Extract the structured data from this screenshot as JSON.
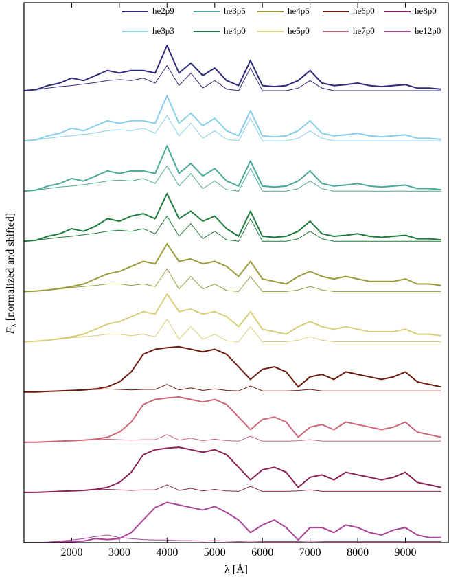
{
  "chart_data": {
    "type": "line",
    "xlabel": "λ [Å]",
    "ylabel_symbol": "F",
    "ylabel_subscript": "λ",
    "ylabel_text": "[normalized and shifted]",
    "xlim": [
      1000,
      9900
    ],
    "ylim": [
      0,
      10.75
    ],
    "xticks": [
      2000,
      3000,
      4000,
      5000,
      6000,
      7000,
      8000,
      9000
    ],
    "legend": "upper right",
    "x": [
      1000,
      1250,
      1500,
      1750,
      2000,
      2250,
      2500,
      2750,
      3000,
      3250,
      3500,
      3750,
      4000,
      4250,
      4500,
      4750,
      5000,
      5250,
      5500,
      5750,
      6000,
      6250,
      6500,
      6750,
      7000,
      7250,
      7500,
      7750,
      8000,
      8250,
      8500,
      8750,
      9000,
      9250,
      9500,
      9750
    ],
    "series": [
      {
        "name": "he2p9",
        "color": "#2d2a7a",
        "values": [
          9.0,
          9.02,
          9.1,
          9.15,
          9.25,
          9.2,
          9.3,
          9.4,
          9.35,
          9.4,
          9.4,
          9.35,
          9.9,
          9.35,
          9.55,
          9.3,
          9.45,
          9.2,
          9.1,
          9.6,
          9.1,
          9.08,
          9.1,
          9.2,
          9.4,
          9.15,
          9.1,
          9.12,
          9.15,
          9.1,
          9.08,
          9.1,
          9.12,
          9.05,
          9.05,
          9.03
        ],
        "secondary_values": [
          9.0,
          9.02,
          9.05,
          9.08,
          9.1,
          9.13,
          9.16,
          9.2,
          9.22,
          9.2,
          9.25,
          9.15,
          9.5,
          9.1,
          9.35,
          9.05,
          9.2,
          9.03,
          9.0,
          9.45,
          9.0,
          9.0,
          9.0,
          9.05,
          9.2,
          9.05,
          9.0,
          9.0,
          9.0,
          9.0,
          9.0,
          9.0,
          9.0,
          9.0,
          9.0,
          9.0
        ]
      },
      {
        "name": "he3p3",
        "color": "#87ceeb",
        "values": [
          8.0,
          8.02,
          8.1,
          8.15,
          8.25,
          8.2,
          8.3,
          8.4,
          8.35,
          8.4,
          8.4,
          8.35,
          8.9,
          8.35,
          8.55,
          8.3,
          8.45,
          8.2,
          8.1,
          8.6,
          8.1,
          8.08,
          8.1,
          8.2,
          8.4,
          8.15,
          8.1,
          8.12,
          8.15,
          8.1,
          8.08,
          8.1,
          8.12,
          8.05,
          8.05,
          8.03
        ],
        "secondary_values": [
          8.0,
          8.02,
          8.05,
          8.08,
          8.1,
          8.13,
          8.16,
          8.2,
          8.22,
          8.2,
          8.25,
          8.15,
          8.5,
          8.1,
          8.35,
          8.05,
          8.2,
          8.03,
          8.0,
          8.45,
          8.0,
          8.0,
          8.0,
          8.05,
          8.2,
          8.05,
          8.0,
          8.0,
          8.0,
          8.0,
          8.0,
          8.0,
          8.0,
          8.0,
          8.0,
          8.0
        ]
      },
      {
        "name": "he3p5",
        "color": "#4aa898",
        "values": [
          7.0,
          7.02,
          7.1,
          7.15,
          7.25,
          7.2,
          7.3,
          7.4,
          7.35,
          7.4,
          7.4,
          7.35,
          7.9,
          7.35,
          7.55,
          7.3,
          7.45,
          7.2,
          7.1,
          7.6,
          7.1,
          7.08,
          7.1,
          7.2,
          7.4,
          7.15,
          7.1,
          7.12,
          7.15,
          7.1,
          7.08,
          7.1,
          7.12,
          7.05,
          7.05,
          7.03
        ],
        "secondary_values": [
          7.0,
          7.02,
          7.05,
          7.08,
          7.1,
          7.13,
          7.16,
          7.2,
          7.22,
          7.2,
          7.25,
          7.15,
          7.5,
          7.1,
          7.35,
          7.05,
          7.2,
          7.03,
          7.0,
          7.45,
          7.0,
          7.0,
          7.0,
          7.05,
          7.2,
          7.05,
          7.0,
          7.0,
          7.0,
          7.0,
          7.0,
          7.0,
          7.0,
          7.0,
          7.0,
          7.0
        ]
      },
      {
        "name": "he4p0",
        "color": "#1e7a3c",
        "values": [
          6.0,
          6.02,
          6.1,
          6.15,
          6.25,
          6.2,
          6.3,
          6.45,
          6.4,
          6.5,
          6.55,
          6.45,
          6.95,
          6.45,
          6.6,
          6.4,
          6.5,
          6.25,
          6.1,
          6.6,
          6.1,
          6.08,
          6.1,
          6.2,
          6.4,
          6.15,
          6.1,
          6.12,
          6.15,
          6.1,
          6.08,
          6.1,
          6.12,
          6.05,
          6.05,
          6.03
        ],
        "secondary_values": [
          6.0,
          6.02,
          6.05,
          6.08,
          6.1,
          6.13,
          6.16,
          6.2,
          6.22,
          6.2,
          6.25,
          6.15,
          6.5,
          6.1,
          6.35,
          6.05,
          6.2,
          6.03,
          6.0,
          6.45,
          6.0,
          6.0,
          6.0,
          6.05,
          6.2,
          6.05,
          6.0,
          6.0,
          6.0,
          6.0,
          6.0,
          6.0,
          6.0,
          6.0,
          6.0,
          6.0
        ]
      },
      {
        "name": "he4p5",
        "color": "#9a9a3a",
        "values": [
          5.0,
          5.01,
          5.03,
          5.06,
          5.1,
          5.15,
          5.25,
          5.35,
          5.4,
          5.5,
          5.6,
          5.55,
          5.95,
          5.6,
          5.65,
          5.55,
          5.6,
          5.5,
          5.3,
          5.6,
          5.25,
          5.2,
          5.15,
          5.3,
          5.4,
          5.3,
          5.25,
          5.3,
          5.25,
          5.2,
          5.2,
          5.2,
          5.25,
          5.15,
          5.15,
          5.12
        ],
        "secondary_values": [
          5.0,
          5.01,
          5.03,
          5.05,
          5.08,
          5.1,
          5.12,
          5.15,
          5.15,
          5.12,
          5.15,
          5.1,
          5.45,
          5.05,
          5.3,
          5.05,
          5.15,
          5.02,
          5.0,
          5.3,
          5.0,
          5.0,
          5.0,
          5.03,
          5.1,
          5.03,
          5.0,
          5.0,
          5.0,
          5.0,
          5.0,
          5.0,
          5.0,
          5.0,
          5.0,
          5.0
        ]
      },
      {
        "name": "he5p0",
        "color": "#d9cd7a",
        "values": [
          4.0,
          4.01,
          4.03,
          4.06,
          4.1,
          4.15,
          4.25,
          4.35,
          4.4,
          4.5,
          4.6,
          4.55,
          4.95,
          4.6,
          4.65,
          4.55,
          4.6,
          4.5,
          4.3,
          4.6,
          4.25,
          4.2,
          4.15,
          4.3,
          4.4,
          4.3,
          4.25,
          4.3,
          4.25,
          4.2,
          4.2,
          4.2,
          4.25,
          4.15,
          4.15,
          4.12
        ],
        "secondary_values": [
          4.0,
          4.01,
          4.03,
          4.05,
          4.08,
          4.1,
          4.12,
          4.15,
          4.15,
          4.12,
          4.15,
          4.1,
          4.45,
          4.05,
          4.3,
          4.05,
          4.15,
          4.02,
          4.0,
          4.3,
          4.0,
          4.0,
          4.0,
          4.03,
          4.1,
          4.03,
          4.0,
          4.0,
          4.0,
          4.0,
          4.0,
          4.0,
          4.0,
          4.0,
          4.0,
          4.0
        ]
      },
      {
        "name": "he6p0",
        "color": "#6b1a0c",
        "values": [
          3.0,
          3.0,
          3.01,
          3.02,
          3.03,
          3.04,
          3.06,
          3.1,
          3.2,
          3.4,
          3.75,
          3.85,
          3.88,
          3.9,
          3.85,
          3.8,
          3.85,
          3.75,
          3.5,
          3.25,
          3.45,
          3.5,
          3.4,
          3.1,
          3.3,
          3.35,
          3.25,
          3.4,
          3.35,
          3.3,
          3.25,
          3.3,
          3.4,
          3.2,
          3.15,
          3.1
        ],
        "secondary_values": [
          3.0,
          3.0,
          3.01,
          3.02,
          3.03,
          3.04,
          3.05,
          3.06,
          3.05,
          3.04,
          3.05,
          3.05,
          3.15,
          3.04,
          3.08,
          3.03,
          3.06,
          3.03,
          3.02,
          3.12,
          3.02,
          3.02,
          3.02,
          3.03,
          3.05,
          3.02,
          3.02,
          3.02,
          3.02,
          3.02,
          3.02,
          3.02,
          3.02,
          3.02,
          3.02,
          3.02
        ]
      },
      {
        "name": "he7p0",
        "color": "#cc6677",
        "values": [
          2.0,
          2.0,
          2.01,
          2.02,
          2.03,
          2.04,
          2.06,
          2.1,
          2.2,
          2.4,
          2.75,
          2.85,
          2.88,
          2.9,
          2.85,
          2.8,
          2.85,
          2.75,
          2.5,
          2.25,
          2.45,
          2.5,
          2.4,
          2.1,
          2.3,
          2.35,
          2.25,
          2.4,
          2.35,
          2.3,
          2.25,
          2.3,
          2.4,
          2.2,
          2.15,
          2.1
        ],
        "secondary_values": [
          2.0,
          2.0,
          2.01,
          2.02,
          2.03,
          2.04,
          2.05,
          2.06,
          2.05,
          2.04,
          2.05,
          2.05,
          2.15,
          2.04,
          2.08,
          2.03,
          2.06,
          2.03,
          2.02,
          2.12,
          2.02,
          2.02,
          2.02,
          2.03,
          2.05,
          2.02,
          2.02,
          2.02,
          2.02,
          2.02,
          2.02,
          2.02,
          2.02,
          2.02,
          2.02,
          2.02
        ]
      },
      {
        "name": "he8p0",
        "color": "#882255",
        "values": [
          1.0,
          1.0,
          1.01,
          1.02,
          1.03,
          1.04,
          1.06,
          1.1,
          1.2,
          1.4,
          1.75,
          1.85,
          1.88,
          1.9,
          1.85,
          1.8,
          1.85,
          1.75,
          1.5,
          1.25,
          1.45,
          1.5,
          1.4,
          1.1,
          1.3,
          1.35,
          1.25,
          1.4,
          1.35,
          1.3,
          1.25,
          1.3,
          1.4,
          1.2,
          1.15,
          1.1
        ],
        "secondary_values": [
          1.0,
          1.0,
          1.01,
          1.02,
          1.03,
          1.04,
          1.05,
          1.06,
          1.05,
          1.04,
          1.05,
          1.05,
          1.15,
          1.04,
          1.08,
          1.03,
          1.06,
          1.03,
          1.02,
          1.12,
          1.02,
          1.02,
          1.02,
          1.03,
          1.05,
          1.02,
          1.02,
          1.02,
          1.02,
          1.02,
          1.02,
          1.02,
          1.02,
          1.02,
          1.02,
          1.02
        ]
      },
      {
        "name": "he12p0",
        "color": "#aa4499",
        "values": [
          0.0,
          0.0,
          0.0,
          0.01,
          0.02,
          0.03,
          0.08,
          0.06,
          0.08,
          0.2,
          0.45,
          0.7,
          0.8,
          0.75,
          0.7,
          0.65,
          0.72,
          0.6,
          0.45,
          0.2,
          0.35,
          0.45,
          0.3,
          0.05,
          0.3,
          0.3,
          0.2,
          0.35,
          0.3,
          0.2,
          0.15,
          0.25,
          0.3,
          0.15,
          0.1,
          0.1
        ],
        "secondary_values": [
          0.0,
          0.0,
          0.01,
          0.03,
          0.05,
          0.08,
          0.12,
          0.15,
          0.1,
          0.08,
          0.06,
          0.05,
          0.05,
          0.04,
          0.04,
          0.03,
          0.04,
          0.03,
          0.02,
          0.03,
          0.02,
          0.02,
          0.02,
          0.02,
          0.03,
          0.02,
          0.02,
          0.02,
          0.02,
          0.02,
          0.02,
          0.02,
          0.02,
          0.02,
          0.02,
          0.02
        ]
      }
    ]
  }
}
